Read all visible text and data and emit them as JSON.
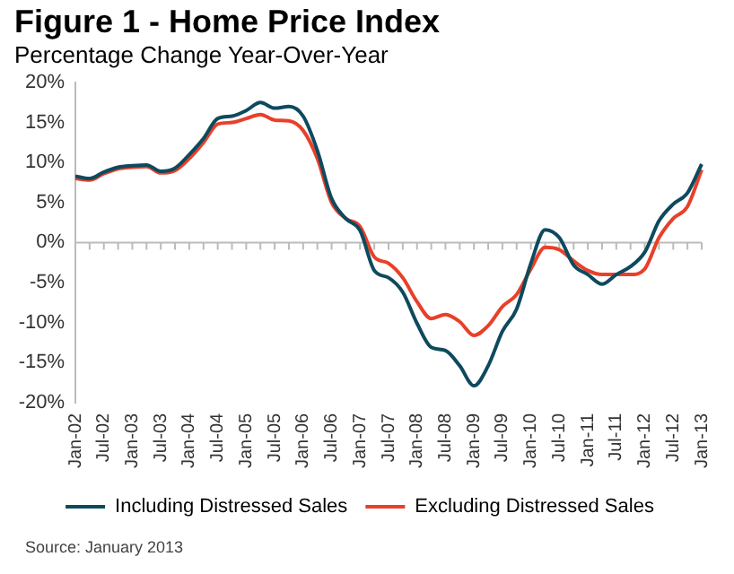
{
  "chart_data": {
    "type": "line",
    "title": "Figure 1 - Home Price Index",
    "subtitle": "Percentage Change Year-Over-Year",
    "categories": [
      "Jan-02",
      null,
      "Jul-02",
      null,
      "Jan-03",
      null,
      "Jul-03",
      null,
      "Jan-04",
      null,
      "Jul-04",
      null,
      "Jan-05",
      null,
      "Jul-05",
      null,
      "Jan-06",
      null,
      "Jul-06",
      null,
      "Jan-07",
      null,
      "Jul-07",
      null,
      "Jan-08",
      null,
      "Jul-08",
      null,
      "Jan-09",
      null,
      "Jul-09",
      null,
      "Jan-10",
      null,
      "Jul-10",
      null,
      "Jan-11",
      null,
      "Jul-11",
      null,
      "Jan-12",
      null,
      "Jul-12",
      null,
      "Jan-13"
    ],
    "series": [
      {
        "name": "Including Distressed Sales",
        "color": "#0e4a5e",
        "values": [
          8.3,
          8.0,
          8.8,
          9.4,
          9.6,
          9.7,
          8.9,
          9.3,
          11.0,
          13.0,
          15.5,
          15.8,
          16.5,
          17.5,
          16.8,
          17.0,
          15.8,
          11.5,
          5.5,
          3.0,
          1.5,
          -3.5,
          -4.4,
          -6.2,
          -10.1,
          -13.1,
          -13.5,
          -15.4,
          -17.9,
          -15.4,
          -11.1,
          -8.3,
          -2.6,
          1.6,
          0.6,
          -2.8,
          -4.0,
          -5.2,
          -4.0,
          -3.0,
          -1.2,
          2.7,
          4.8,
          6.2,
          9.8
        ]
      },
      {
        "name": "Excluding Distressed Sales",
        "color": "#e8402a",
        "values": [
          8.0,
          7.8,
          8.6,
          9.2,
          9.4,
          9.5,
          8.7,
          9.0,
          10.5,
          12.5,
          14.8,
          15.0,
          15.5,
          16.0,
          15.3,
          15.2,
          14.0,
          10.5,
          5.0,
          3.0,
          2.0,
          -1.8,
          -2.6,
          -4.4,
          -7.4,
          -9.5,
          -9.0,
          -9.9,
          -11.6,
          -10.4,
          -8.0,
          -6.5,
          -3.3,
          -0.6,
          -0.9,
          -2.3,
          -3.5,
          -4.0,
          -4.0,
          -4.0,
          -3.3,
          0.6,
          3.0,
          4.5,
          9.1
        ]
      }
    ],
    "ylim": [
      -20,
      20
    ],
    "yticks": [
      {
        "value": -20,
        "label": "-20%"
      },
      {
        "value": -15,
        "label": "-15%"
      },
      {
        "value": -10,
        "label": "-10%"
      },
      {
        "value": -5,
        "label": "-5%"
      },
      {
        "value": 0,
        "label": "0%"
      },
      {
        "value": 5,
        "label": "5%"
      },
      {
        "value": 10,
        "label": "10%"
      },
      {
        "value": 15,
        "label": "15%"
      },
      {
        "value": 20,
        "label": "20%"
      }
    ],
    "grid": false,
    "legend": "bottom",
    "marker": "none",
    "line_style": "solid",
    "ref_lines": [
      {
        "axis": "y",
        "value": 0,
        "color": "#bbbbbb"
      }
    ],
    "annotations": [
      "Source: January 2013"
    ]
  }
}
